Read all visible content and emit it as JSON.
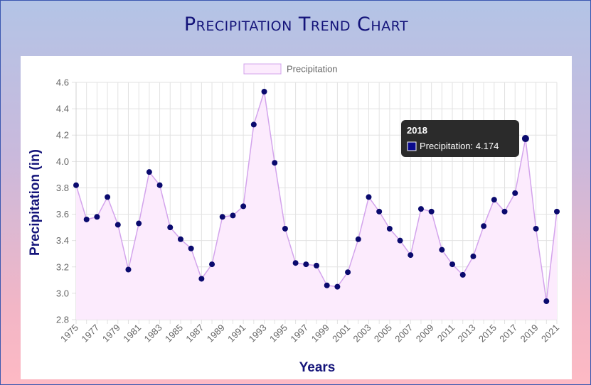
{
  "page": {
    "title": "Precipitation Trend Chart"
  },
  "chart_data": {
    "type": "line",
    "fill": true,
    "title": "",
    "xlabel": "Years",
    "ylabel": "Precipitation (in)",
    "ylim": [
      2.8,
      4.6
    ],
    "yticks": [
      "2.8",
      "3.0",
      "3.2",
      "3.4",
      "3.6",
      "3.8",
      "4.0",
      "4.2",
      "4.4",
      "4.6"
    ],
    "grid": true,
    "legend": {
      "position": "top",
      "entries": [
        "Precipitation"
      ]
    },
    "x": [
      "1975",
      "1976",
      "1977",
      "1978",
      "1979",
      "1980",
      "1981",
      "1982",
      "1983",
      "1984",
      "1985",
      "1986",
      "1987",
      "1988",
      "1989",
      "1990",
      "1991",
      "1992",
      "1993",
      "1994",
      "1995",
      "1996",
      "1997",
      "1998",
      "1999",
      "2000",
      "2001",
      "2002",
      "2003",
      "2004",
      "2005",
      "2006",
      "2007",
      "2008",
      "2009",
      "2010",
      "2011",
      "2012",
      "2013",
      "2014",
      "2015",
      "2016",
      "2017",
      "2018",
      "2019",
      "2020",
      "2021"
    ],
    "xtick_labels": [
      "1975",
      "1977",
      "1979",
      "1981",
      "1983",
      "1985",
      "1987",
      "1989",
      "1991",
      "1993",
      "1995",
      "1997",
      "1999",
      "2001",
      "2003",
      "2005",
      "2007",
      "2009",
      "2011",
      "2013",
      "2015",
      "2017",
      "2019",
      "2021"
    ],
    "series": [
      {
        "name": "Precipitation",
        "values": [
          3.82,
          3.56,
          3.58,
          3.73,
          3.52,
          3.18,
          3.53,
          3.92,
          3.82,
          3.5,
          3.41,
          3.34,
          3.11,
          3.22,
          3.58,
          3.59,
          3.66,
          4.28,
          4.53,
          3.99,
          3.49,
          3.23,
          3.22,
          3.21,
          3.06,
          3.05,
          3.16,
          3.41,
          3.73,
          3.62,
          3.49,
          3.4,
          3.29,
          3.64,
          3.62,
          3.33,
          3.22,
          3.14,
          3.28,
          3.51,
          3.71,
          3.62,
          3.76,
          4.174,
          3.49,
          2.94,
          3.62
        ]
      }
    ],
    "tooltip": {
      "title": "2018",
      "label": "Precipitation: 4.174",
      "index": 43
    },
    "colors": {
      "line": "#d3a4ec",
      "fill": "#fcebfd",
      "point": "#0a0a6e",
      "axis_title": "#14147a",
      "tooltip_bg": "#2b2b2b",
      "tooltip_swatch": "#0a0a8e"
    }
  }
}
